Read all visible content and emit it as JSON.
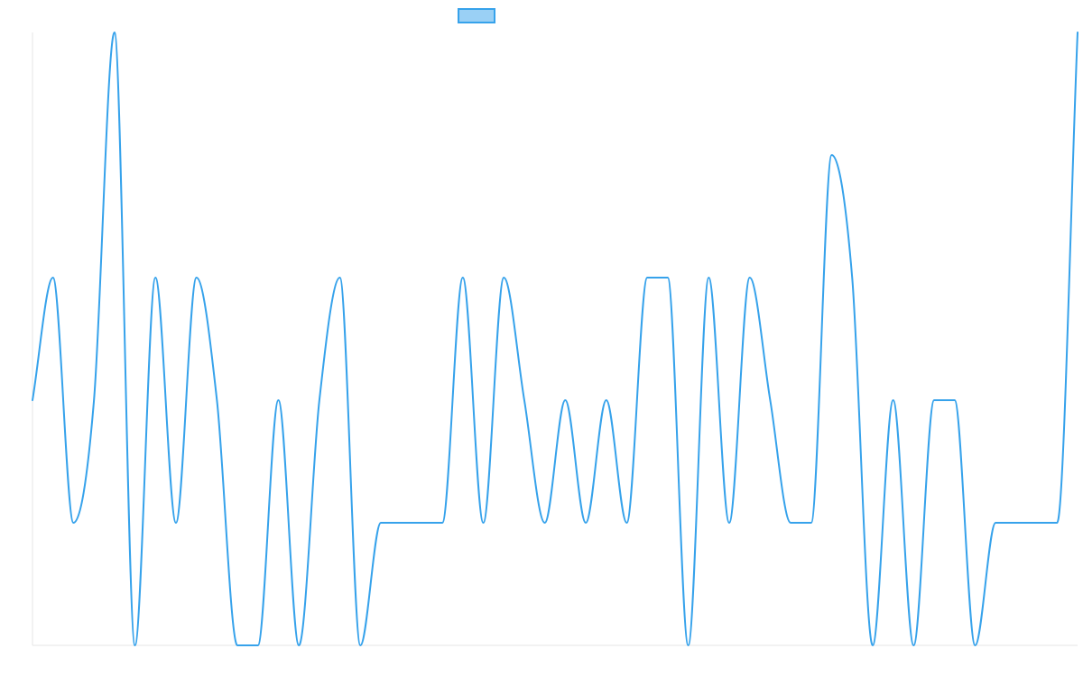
{
  "chart_data": {
    "type": "line",
    "title": "",
    "xlabel": "",
    "ylabel": "",
    "grid": false,
    "legend_position": "top-center",
    "ylim": [
      0,
      5
    ],
    "x": [
      0,
      1,
      2,
      3,
      4,
      5,
      6,
      7,
      8,
      9,
      10,
      11,
      12,
      13,
      14,
      15,
      16,
      17,
      18,
      19,
      20,
      21,
      22,
      23,
      24,
      25,
      26,
      27,
      28,
      29,
      30,
      31,
      32,
      33,
      34,
      35,
      36,
      37,
      38,
      39,
      40,
      41,
      42,
      43,
      44,
      45,
      46,
      47,
      48,
      49,
      50,
      51
    ],
    "series": [
      {
        "line_color": "#36a2eb",
        "fill_color": "#9ad0f5",
        "values": [
          2,
          3,
          1,
          2,
          5,
          0,
          3,
          1,
          3,
          2,
          0,
          0,
          2,
          0,
          2,
          3,
          0,
          1,
          1,
          1,
          1,
          3,
          1,
          3,
          2,
          1,
          2,
          1,
          2,
          1,
          3,
          3,
          0,
          3,
          1,
          3,
          2,
          1,
          1,
          4,
          3,
          0,
          2,
          0,
          2,
          2,
          0,
          1,
          1,
          1,
          1,
          5
        ]
      }
    ]
  }
}
